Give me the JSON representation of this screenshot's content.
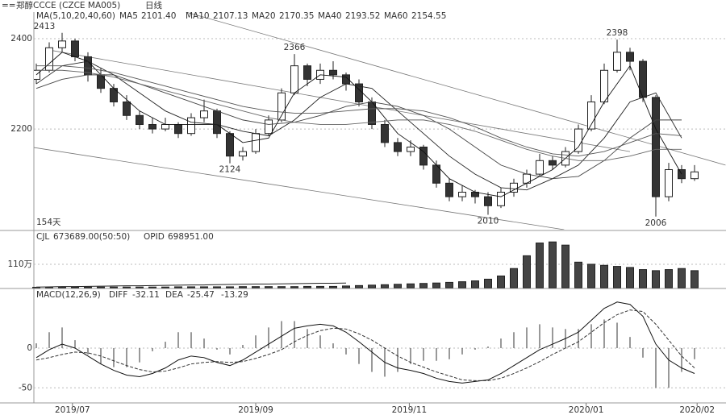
{
  "header": {
    "title": "郑醇CCCE (CZCE MA005)",
    "period": "日线"
  },
  "chart_data": [
    {
      "type": "candlestick",
      "legend_title": "MA(5,10,20,40,60)",
      "period_label": "154天",
      "ylim": [
        1977,
        2459
      ],
      "yticks": [
        2200,
        2400
      ],
      "candles": [
        [
          2310,
          2345,
          2300,
          2330
        ],
        [
          2330,
          2392,
          2325,
          2380
        ],
        [
          2380,
          2413,
          2370,
          2395
        ],
        [
          2395,
          2400,
          2350,
          2360
        ],
        [
          2360,
          2370,
          2305,
          2320
        ],
        [
          2320,
          2335,
          2280,
          2290
        ],
        [
          2290,
          2300,
          2250,
          2260
        ],
        [
          2260,
          2275,
          2220,
          2230
        ],
        [
          2230,
          2240,
          2200,
          2210
        ],
        [
          2210,
          2225,
          2190,
          2200
        ],
        [
          2200,
          2225,
          2195,
          2210
        ],
        [
          2210,
          2215,
          2180,
          2190
        ],
        [
          2190,
          2235,
          2185,
          2225
        ],
        [
          2225,
          2265,
          2215,
          2240
        ],
        [
          2240,
          2245,
          2180,
          2190
        ],
        [
          2190,
          2195,
          2124,
          2140
        ],
        [
          2140,
          2160,
          2130,
          2150
        ],
        [
          2150,
          2200,
          2145,
          2190
        ],
        [
          2190,
          2230,
          2185,
          2220
        ],
        [
          2220,
          2290,
          2215,
          2280
        ],
        [
          2280,
          2366,
          2275,
          2340
        ],
        [
          2340,
          2345,
          2295,
          2310
        ],
        [
          2310,
          2345,
          2300,
          2330
        ],
        [
          2330,
          2350,
          2310,
          2320
        ],
        [
          2320,
          2325,
          2285,
          2300
        ],
        [
          2300,
          2310,
          2250,
          2260
        ],
        [
          2260,
          2270,
          2200,
          2210
        ],
        [
          2210,
          2220,
          2160,
          2170
        ],
        [
          2170,
          2180,
          2140,
          2150
        ],
        [
          2150,
          2175,
          2140,
          2160
        ],
        [
          2160,
          2165,
          2110,
          2120
        ],
        [
          2120,
          2130,
          2070,
          2080
        ],
        [
          2080,
          2090,
          2040,
          2050
        ],
        [
          2050,
          2075,
          2040,
          2060
        ],
        [
          2060,
          2065,
          2035,
          2050
        ],
        [
          2050,
          2060,
          2010,
          2030
        ],
        [
          2030,
          2070,
          2025,
          2060
        ],
        [
          2060,
          2090,
          2050,
          2080
        ],
        [
          2080,
          2110,
          2070,
          2100
        ],
        [
          2100,
          2145,
          2095,
          2130
        ],
        [
          2130,
          2140,
          2110,
          2120
        ],
        [
          2120,
          2160,
          2115,
          2150
        ],
        [
          2150,
          2210,
          2145,
          2200
        ],
        [
          2200,
          2275,
          2195,
          2260
        ],
        [
          2260,
          2345,
          2255,
          2330
        ],
        [
          2330,
          2398,
          2325,
          2370
        ],
        [
          2370,
          2380,
          2330,
          2350
        ],
        [
          2350,
          2355,
          2260,
          2270
        ],
        [
          2270,
          2275,
          2006,
          2050
        ],
        [
          2050,
          2125,
          2040,
          2110
        ],
        [
          2110,
          2120,
          2080,
          2090
        ],
        [
          2090,
          2120,
          2085,
          2105
        ]
      ],
      "ma_x": [
        0,
        2,
        4,
        6,
        8,
        10,
        12,
        14,
        16,
        18,
        20,
        22,
        24,
        26,
        28,
        30,
        32,
        34,
        36,
        38,
        40,
        42,
        44,
        46,
        48,
        50
      ],
      "series": [
        {
          "name": "MA5",
          "label": "2101.40",
          "color": "#111",
          "values": [
            2320,
            2370,
            2350,
            2290,
            2240,
            2210,
            2210,
            2210,
            2170,
            2180,
            2280,
            2320,
            2315,
            2260,
            2190,
            2150,
            2090,
            2060,
            2050,
            2080,
            2110,
            2160,
            2260,
            2340,
            2200,
            2100
          ]
        },
        {
          "name": "MA10",
          "label": "2107.13",
          "color": "#222",
          "values": [
            2300,
            2340,
            2350,
            2320,
            2280,
            2240,
            2215,
            2210,
            2195,
            2185,
            2220,
            2270,
            2300,
            2290,
            2240,
            2190,
            2140,
            2100,
            2070,
            2065,
            2090,
            2120,
            2180,
            2260,
            2280,
            2180
          ]
        },
        {
          "name": "MA20",
          "label": "2170.35",
          "color": "#444",
          "values": [
            2290,
            2310,
            2320,
            2320,
            2300,
            2280,
            2260,
            2240,
            2220,
            2210,
            2215,
            2230,
            2250,
            2260,
            2250,
            2230,
            2200,
            2160,
            2120,
            2100,
            2090,
            2095,
            2130,
            2180,
            2220,
            2220
          ]
        },
        {
          "name": "MA40",
          "label": "2193.52",
          "color": "#555",
          "values": [
            2340,
            2340,
            2335,
            2325,
            2310,
            2295,
            2280,
            2265,
            2250,
            2240,
            2235,
            2235,
            2240,
            2245,
            2245,
            2240,
            2225,
            2205,
            2180,
            2160,
            2145,
            2140,
            2150,
            2170,
            2190,
            2185
          ]
        },
        {
          "name": "MA60",
          "label": "2154.55",
          "color": "#666",
          "values": [
            2330,
            2330,
            2325,
            2315,
            2300,
            2285,
            2270,
            2255,
            2240,
            2225,
            2215,
            2210,
            2210,
            2215,
            2220,
            2220,
            2210,
            2195,
            2175,
            2155,
            2140,
            2130,
            2130,
            2140,
            2155,
            2155
          ]
        }
      ],
      "trendlines": [
        {
          "x": [
            11.6,
            53.4
          ],
          "y": [
            2459,
            2120
          ]
        },
        {
          "x": [
            1,
            46
          ],
          "y": [
            2375,
            2150
          ]
        },
        {
          "x": [
            -0.2,
            40.9
          ],
          "y": [
            2159,
            1977
          ]
        }
      ]
    },
    {
      "type": "volume",
      "name": "CJL",
      "label": "673689.00(50:50)",
      "oi_name": "OPID",
      "oi_label": "698951.00",
      "ylim": [
        0,
        265
      ],
      "yticks": [
        {
          "value": 110,
          "label": "110万"
        }
      ],
      "values": [
        2,
        2,
        2,
        2,
        3,
        3,
        3,
        3,
        3,
        3,
        3,
        4,
        4,
        4,
        4,
        4,
        5,
        5,
        5,
        5,
        5,
        6,
        6,
        6,
        8,
        10,
        12,
        14,
        16,
        18,
        20,
        22,
        25,
        28,
        32,
        40,
        55,
        90,
        150,
        210,
        215,
        200,
        120,
        110,
        105,
        100,
        95,
        85,
        80,
        85,
        90,
        80
      ],
      "oi_values": [
        3,
        4,
        5,
        5,
        6,
        7,
        8,
        9,
        9,
        10,
        11,
        12,
        13,
        13,
        14,
        15,
        16,
        17,
        17,
        18,
        19,
        20,
        21,
        21,
        22,
        null,
        null,
        null,
        null,
        null,
        null,
        null,
        null,
        null,
        null,
        null,
        null,
        null,
        null,
        null,
        null,
        null,
        null,
        null,
        null,
        null,
        null,
        null,
        null,
        null,
        null,
        null
      ]
    },
    {
      "type": "macd",
      "title": "MACD(12,26,9)",
      "macd_label": "-13.29",
      "ylim": [
        -69,
        73
      ],
      "yticks": [
        0,
        -50
      ],
      "diff": {
        "name": "DIFF",
        "label": "-32.11",
        "values": [
          -12,
          -2,
          5,
          0,
          -10,
          -20,
          -28,
          -34,
          -36,
          -32,
          -25,
          -15,
          -10,
          -12,
          -18,
          -22,
          -15,
          -5,
          5,
          15,
          25,
          28,
          30,
          28,
          20,
          8,
          -5,
          -18,
          -25,
          -28,
          -32,
          -38,
          -42,
          -44,
          -42,
          -40,
          -32,
          -22,
          -12,
          -2,
          5,
          12,
          20,
          35,
          50,
          58,
          55,
          40,
          5,
          -15,
          -25,
          -32
        ]
      },
      "dea": {
        "name": "DEA",
        "label": "-25.47",
        "values": [
          -15,
          -12,
          -8,
          -5,
          -6,
          -10,
          -16,
          -22,
          -27,
          -30,
          -29,
          -25,
          -20,
          -18,
          -17,
          -18,
          -17,
          -13,
          -8,
          -2,
          8,
          16,
          22,
          25,
          24,
          18,
          10,
          0,
          -10,
          -18,
          -24,
          -30,
          -35,
          -40,
          -41,
          -41,
          -38,
          -32,
          -25,
          -17,
          -8,
          0,
          8,
          20,
          32,
          42,
          48,
          46,
          30,
          10,
          -10,
          -25
        ]
      },
      "hist": [
        6,
        20,
        26,
        10,
        -8,
        -20,
        -24,
        -24,
        -18,
        -4,
        8,
        20,
        20,
        12,
        -2,
        -8,
        4,
        16,
        26,
        34,
        34,
        24,
        16,
        6,
        -8,
        -20,
        -30,
        -36,
        -30,
        -20,
        -16,
        -16,
        -14,
        -8,
        -2,
        2,
        12,
        20,
        26,
        30,
        26,
        24,
        24,
        30,
        36,
        32,
        14,
        -12,
        -50,
        -50,
        -30,
        -14
      ],
      "xticks": [
        {
          "value": 2.8,
          "label": "2019/07"
        },
        {
          "value": 17,
          "label": "2019/09"
        },
        {
          "value": 28.9,
          "label": "2019/11"
        },
        {
          "value": 42.6,
          "label": "2020/01"
        },
        {
          "value": 51.2,
          "label": "2020/02"
        }
      ]
    }
  ]
}
